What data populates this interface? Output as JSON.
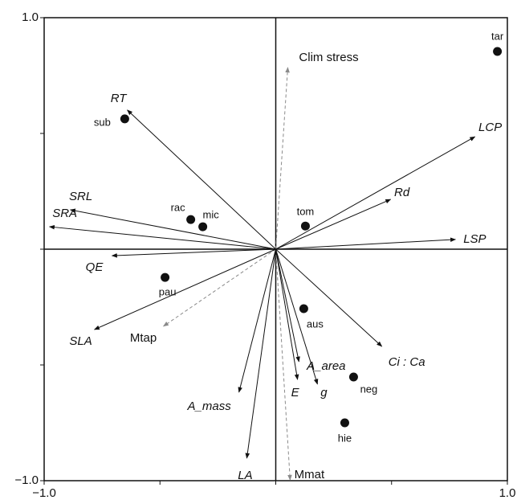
{
  "chart_data": {
    "type": "biplot",
    "xlim": [
      -1.0,
      1.0
    ],
    "ylim": [
      -1.0,
      1.0
    ],
    "xticks": [
      {
        "value": -1.0,
        "label": "−1.0"
      },
      {
        "value": 1.0,
        "label": "1.0"
      }
    ],
    "yticks": [
      {
        "value": -1.0,
        "label": "−1.0"
      },
      {
        "value": 1.0,
        "label": "1.0"
      }
    ],
    "xminor_ticks": [
      -0.5,
      0,
      0.5
    ],
    "yminor_ticks": [
      -0.5,
      0,
      0.5
    ],
    "points": {
      "color": "#111111",
      "labels": [
        "tar",
        "sub",
        "rac",
        "mic",
        "tom",
        "pau",
        "aus",
        "neg",
        "hie"
      ],
      "x": [
        0.957,
        -0.652,
        -0.367,
        -0.315,
        0.128,
        -0.478,
        0.121,
        0.336,
        0.298
      ],
      "y": [
        0.854,
        0.563,
        0.128,
        0.097,
        0.1,
        -0.122,
        -0.257,
        -0.552,
        -0.75
      ]
    },
    "loadings": {
      "color": "#111111",
      "line_style": "solid",
      "labels": [
        "RT",
        "LCP",
        "Rd",
        "SRL",
        "SRA",
        "LSP",
        "QE",
        "SLA",
        "Ci : Ca",
        "A_area",
        "g",
        "E",
        "A_mass",
        "LA"
      ],
      "x": [
        -0.641,
        0.86,
        0.496,
        -0.887,
        -0.977,
        0.776,
        -0.707,
        -0.783,
        0.458,
        0.1,
        0.18,
        0.094,
        -0.159,
        -0.125
      ],
      "y": [
        0.601,
        0.486,
        0.215,
        0.17,
        0.097,
        0.042,
        -0.028,
        -0.347,
        -0.42,
        -0.486,
        -0.583,
        -0.563,
        -0.618,
        -0.903
      ]
    },
    "env_vectors": {
      "color": "#8a8a8a",
      "line_style": "dashed",
      "labels": [
        "Clim stress",
        "Mtap",
        "Mmat"
      ],
      "x": [
        0.052,
        -0.485,
        0.062
      ],
      "y": [
        0.785,
        -0.333,
        -0.997
      ]
    }
  }
}
